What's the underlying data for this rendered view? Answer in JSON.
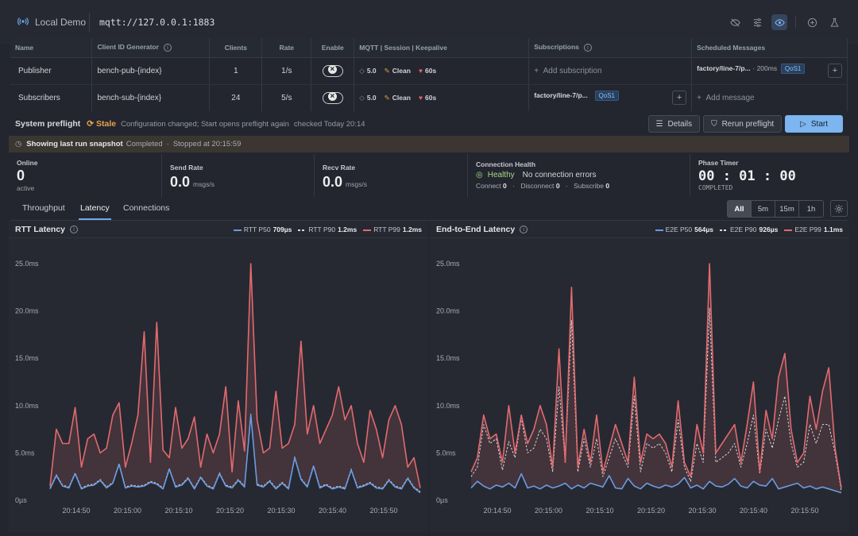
{
  "app": {
    "name": "Local Demo",
    "broker_url": "mqtt://127.0.0.1:1883"
  },
  "top_icons": [
    "eye-off-icon",
    "sliders-icon",
    "eye-icon",
    "plus-circle-icon",
    "flask-icon"
  ],
  "config_table": {
    "headers": [
      "Name",
      "Client ID Generator",
      "Clients",
      "Rate",
      "Enable",
      "MQTT | Session | Keepalive",
      "Subscriptions",
      "Scheduled Messages"
    ],
    "publisher": {
      "name": "Publisher",
      "client_id": "bench-pub-{index}",
      "clients": "1",
      "rate": "1/s",
      "mqtt": "5.0",
      "session": "Clean",
      "keepalive": "60s",
      "subscriptions": "Add subscription",
      "scheduled_topic": "factory/line-7/p...",
      "scheduled_interval": "· 200ms",
      "scheduled_qos": "QoS1"
    },
    "subscribers": {
      "name": "Subscribers",
      "client_id": "bench-sub-{index}",
      "clients": "24",
      "rate": "5/s",
      "mqtt": "5.0",
      "session": "Clean",
      "keepalive": "60s",
      "subscription_topic": "factory/line-7/p...",
      "subscription_qos": "QoS1",
      "scheduled": "Add message"
    }
  },
  "preflight": {
    "title": "System preflight",
    "status": "Stale",
    "message": "Configuration changed; Start opens preflight again",
    "checked": "checked Today 20:14",
    "details_label": "Details",
    "rerun_label": "Rerun preflight",
    "start_label": "Start"
  },
  "banner": {
    "title": "Showing last run snapshot",
    "state": "Completed",
    "stopped": "Stopped at 20:15:59"
  },
  "stats": {
    "online": {
      "label": "Online",
      "value": "0",
      "sub": "active"
    },
    "send_rate": {
      "label": "Send Rate",
      "value": "0.0",
      "unit": "msgs/s"
    },
    "recv_rate": {
      "label": "Recv Rate",
      "value": "0.0",
      "unit": "msgs/s"
    },
    "health": {
      "label": "Connection Health",
      "status": "Healthy",
      "message": "No connection errors",
      "connect_label": "Connect",
      "connect": "0",
      "disconnect_label": "Disconnect",
      "disconnect": "0",
      "subscribe_label": "Subscribe",
      "subscribe": "0"
    },
    "phase": {
      "label": "Phase Timer",
      "value": "00 : 01 : 00",
      "state": "COMPLETED"
    }
  },
  "tabs": [
    "Throughput",
    "Latency",
    "Connections"
  ],
  "active_tab": "Latency",
  "ranges": [
    "All",
    "5m",
    "15m",
    "1h"
  ],
  "colors": {
    "p50": "#6b9be0",
    "p90": "#d9dbe0",
    "p99": "#e26a6e",
    "accent": "#7cb5ef",
    "stale": "#e9a14e",
    "healthy": "#a8d98b"
  },
  "chart_data": [
    {
      "type": "line",
      "title": "RTT Latency",
      "x_ticks": [
        "20:14:50",
        "20:15:00",
        "20:15:10",
        "20:15:20",
        "20:15:30",
        "20:15:40",
        "20:15:50"
      ],
      "y_ticks": [
        "0µs",
        "5.0ms",
        "10.0ms",
        "15.0ms",
        "20.0ms",
        "25.0ms"
      ],
      "ylim": [
        0,
        25
      ],
      "series": [
        {
          "name": "RTT P50",
          "summary": "709µs",
          "style": "solid",
          "values": [
            1.2,
            2.6,
            1.5,
            1.3,
            2.8,
            1.2,
            1.5,
            1.6,
            2.1,
            1.3,
            1.8,
            3.8,
            1.3,
            1.5,
            1.4,
            1.5,
            1.9,
            1.7,
            1.2,
            3.3,
            1.4,
            1.6,
            2.3,
            1.2,
            2.4,
            1.5,
            1.2,
            2.8,
            1.5,
            1.3,
            2.1,
            1.4,
            9.0,
            1.6,
            1.4,
            2.0,
            1.2,
            1.8,
            1.2,
            4.5,
            2.2,
            1.4,
            3.6,
            1.3,
            1.6,
            1.2,
            1.4,
            1.2,
            3.2,
            1.3,
            1.5,
            1.8,
            1.3,
            1.2,
            2.1,
            1.4,
            1.2,
            2.3,
            1.3,
            0.8
          ]
        },
        {
          "name": "RTT P90",
          "summary": "1.2ms",
          "style": "dashed",
          "values": [
            1.3,
            2.7,
            1.6,
            1.4,
            2.9,
            1.3,
            1.6,
            1.7,
            2.2,
            1.4,
            1.9,
            3.9,
            1.4,
            1.6,
            1.5,
            1.6,
            2.0,
            1.8,
            1.3,
            3.4,
            1.5,
            1.7,
            2.4,
            1.3,
            2.5,
            1.6,
            1.3,
            2.9,
            1.6,
            1.4,
            2.2,
            1.5,
            9.1,
            1.7,
            1.5,
            2.1,
            1.3,
            1.9,
            1.3,
            4.6,
            2.3,
            1.5,
            3.7,
            1.4,
            1.7,
            1.3,
            1.5,
            1.3,
            3.3,
            1.4,
            1.6,
            1.9,
            1.4,
            1.3,
            2.2,
            1.5,
            1.3,
            2.4,
            1.4,
            0.9
          ]
        },
        {
          "name": "RTT P99",
          "summary": "1.2ms",
          "style": "solid",
          "values": [
            1.5,
            7.5,
            6.0,
            6.0,
            9.8,
            3.5,
            6.5,
            7.0,
            5.0,
            5.5,
            9.0,
            10.3,
            3.5,
            6.0,
            9.0,
            17.8,
            4.0,
            18.8,
            5.3,
            4.5,
            9.8,
            5.5,
            6.5,
            8.8,
            3.5,
            7.0,
            5.0,
            7.0,
            12.0,
            3.0,
            10.5,
            5.2,
            25.0,
            8.5,
            5.0,
            5.5,
            11.5,
            5.5,
            6.0,
            8.0,
            16.8,
            7.0,
            10.0,
            6.0,
            7.5,
            9.0,
            12.0,
            8.5,
            10.0,
            6.0,
            4.0,
            9.5,
            7.5,
            4.5,
            8.5,
            10.0,
            8.0,
            3.5,
            4.5,
            1.3
          ]
        }
      ]
    },
    {
      "type": "line",
      "title": "End-to-End Latency",
      "x_ticks": [
        "20:14:50",
        "20:15:00",
        "20:15:10",
        "20:15:20",
        "20:15:30",
        "20:15:40",
        "20:15:50"
      ],
      "y_ticks": [
        "0µs",
        "5.0ms",
        "10.0ms",
        "15.0ms",
        "20.0ms",
        "25.0ms"
      ],
      "ylim": [
        0,
        25
      ],
      "series": [
        {
          "name": "E2E P50",
          "summary": "564µs",
          "style": "solid",
          "values": [
            1.3,
            2.0,
            1.5,
            1.2,
            1.6,
            1.4,
            1.8,
            1.3,
            2.8,
            1.3,
            1.5,
            1.2,
            1.6,
            1.3,
            1.5,
            1.8,
            1.2,
            1.6,
            1.3,
            1.8,
            1.6,
            1.4,
            2.6,
            1.3,
            1.2,
            2.3,
            1.5,
            1.2,
            1.8,
            1.5,
            1.3,
            1.6,
            1.4,
            1.7,
            2.4,
            1.3,
            1.6,
            1.2,
            2.0,
            1.5,
            1.4,
            1.7,
            2.3,
            1.5,
            1.3,
            2.0,
            1.6,
            1.5,
            2.3,
            1.2,
            1.4,
            1.6,
            1.8,
            1.3,
            1.5,
            1.2,
            1.4,
            1.2,
            1.0,
            0.8
          ]
        },
        {
          "name": "E2E P90",
          "summary": "926µs",
          "style": "dashed",
          "values": [
            2.5,
            3.5,
            8.0,
            6.0,
            6.5,
            3.2,
            6.2,
            4.5,
            8.7,
            5.0,
            5.5,
            7.5,
            6.5,
            3.0,
            12.0,
            4.0,
            19.0,
            3.0,
            6.5,
            3.5,
            6.5,
            2.5,
            4.5,
            6.5,
            5.0,
            3.5,
            11.0,
            3.0,
            6.0,
            5.5,
            6.0,
            5.0,
            3.0,
            8.5,
            3.5,
            2.0,
            6.0,
            4.0,
            20.3,
            4.0,
            4.5,
            5.0,
            6.0,
            3.5,
            6.0,
            9.0,
            2.8,
            7.5,
            5.5,
            8.5,
            11.0,
            6.0,
            3.5,
            4.0,
            8.0,
            6.0,
            8.0,
            8.0,
            5.0,
            1.0
          ]
        },
        {
          "name": "E2E P99",
          "summary": "1.1ms",
          "style": "solid",
          "values": [
            3.0,
            4.5,
            9.0,
            6.5,
            7.0,
            4.0,
            10.0,
            5.0,
            9.0,
            6.0,
            7.5,
            10.0,
            8.0,
            3.5,
            16.0,
            4.0,
            22.5,
            3.5,
            7.5,
            4.0,
            9.0,
            3.0,
            5.5,
            8.0,
            6.0,
            4.0,
            13.0,
            4.0,
            7.0,
            6.5,
            7.0,
            6.0,
            3.5,
            10.5,
            4.0,
            2.5,
            8.0,
            5.0,
            25.0,
            5.0,
            6.0,
            7.0,
            8.0,
            4.0,
            8.0,
            12.5,
            3.0,
            9.5,
            6.5,
            13.0,
            15.5,
            7.5,
            4.0,
            5.0,
            11.0,
            7.5,
            11.5,
            14.0,
            5.5,
            1.3
          ]
        }
      ]
    }
  ]
}
